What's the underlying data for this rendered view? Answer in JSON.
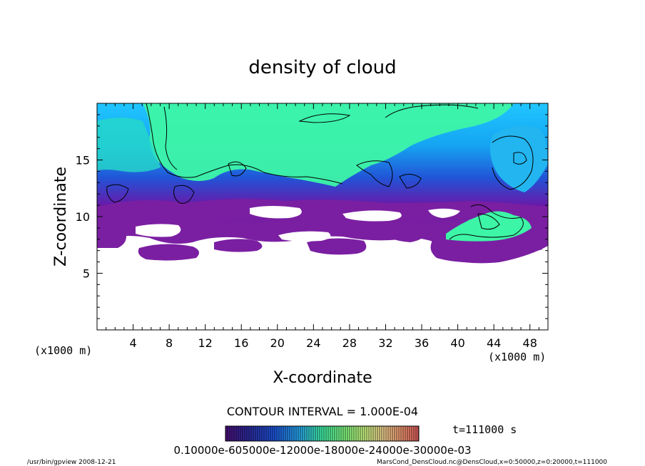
{
  "chart_data": {
    "type": "heatmap",
    "title": "density of cloud",
    "xlabel": "X-coordinate",
    "ylabel": "Z-coordinate",
    "x_unit": "(x1000 m)",
    "y_unit": "(x1000 m)",
    "xlim": [
      0,
      50
    ],
    "ylim": [
      0,
      20
    ],
    "x_ticks": [
      4,
      8,
      12,
      16,
      20,
      24,
      28,
      32,
      36,
      40,
      44,
      48
    ],
    "y_ticks": [
      5,
      10,
      15
    ],
    "x_tick_labels": [
      "4",
      "8",
      "12",
      "16",
      "20",
      "24",
      "28",
      "32",
      "36",
      "40",
      "44",
      "48"
    ],
    "y_tick_labels": [
      "5",
      "10",
      "15"
    ],
    "contour_interval": "CONTOUR INTERVAL = 1.000E-04",
    "time_label": "t=111000 s",
    "colorbar_labels": "0.10000e-605000e-12000e-18000e-24000e-30000e-03",
    "colorbar_colors": [
      "#4b0f7a",
      "#2a2a9a",
      "#1c52d6",
      "#27a3e6",
      "#3ee8a3",
      "#7ff07a",
      "#c4ed7d",
      "#e8c98a",
      "#e98d6a",
      "#d9585b"
    ],
    "field_colors": {
      "background": "#ffffff",
      "low": "#7a1fa2",
      "low_mid": "#2f3bc8",
      "mid": "#1ea7f0",
      "high": "#3df5a6",
      "contour": "#000000"
    },
    "regions": [
      {
        "name": "upper cloud layer",
        "x_range": [
          0,
          50
        ],
        "z_range": [
          10,
          20
        ]
      },
      {
        "name": "lower purple band",
        "x_range": [
          0,
          50
        ],
        "z_range": [
          6.5,
          10
        ]
      },
      {
        "name": "right lower cloud",
        "x_range": [
          37,
          50
        ],
        "z_range": [
          6.5,
          11.5
        ]
      }
    ]
  },
  "footer": {
    "left": "/usr/bin/gpview   2008-12-21",
    "right": "MarsCond_DensCloud.nc@DensCloud,x=0:50000,z=0:20000,t=111000"
  }
}
